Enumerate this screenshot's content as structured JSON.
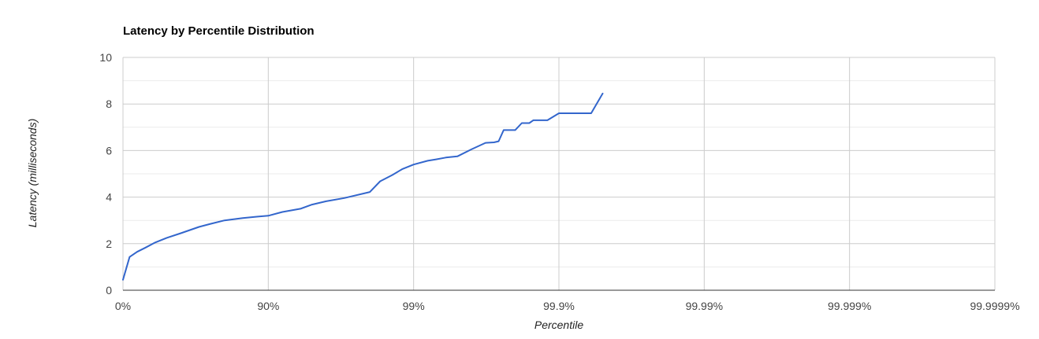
{
  "chart_data": {
    "type": "line",
    "title": "Latency by Percentile Distribution",
    "xlabel": "Percentile",
    "ylabel": "Latency (milliseconds)",
    "x_scale": "log-inverse-percentile",
    "x_ticks": [
      "0%",
      "90%",
      "99%",
      "99.9%",
      "99.99%",
      "99.999%",
      "99.9999%"
    ],
    "y_ticks": [
      "0",
      "2",
      "4",
      "6",
      "8",
      "10"
    ],
    "ylim": [
      0,
      10
    ],
    "xlim_percentile": [
      0,
      99.9999
    ],
    "grid": true,
    "legend": "none",
    "colors": {
      "line": "#3366cc",
      "grid_major": "#cccccc",
      "grid_minor": "#ebebeb",
      "axis": "#333333"
    },
    "series": [
      {
        "points": [
          {
            "x": 0,
            "y": 0.45
          },
          {
            "x": 10,
            "y": 1.43
          },
          {
            "x": 20,
            "y": 1.65
          },
          {
            "x": 30,
            "y": 1.83
          },
          {
            "x": 40,
            "y": 2.05
          },
          {
            "x": 50,
            "y": 2.25
          },
          {
            "x": 60,
            "y": 2.45
          },
          {
            "x": 70,
            "y": 2.72
          },
          {
            "x": 75,
            "y": 2.85
          },
          {
            "x": 80,
            "y": 3.0
          },
          {
            "x": 85,
            "y": 3.1
          },
          {
            "x": 88,
            "y": 3.16
          },
          {
            "x": 90,
            "y": 3.2
          },
          {
            "x": 92,
            "y": 3.36
          },
          {
            "x": 94,
            "y": 3.5
          },
          {
            "x": 95,
            "y": 3.68
          },
          {
            "x": 96,
            "y": 3.82
          },
          {
            "x": 97,
            "y": 3.96
          },
          {
            "x": 98,
            "y": 4.22
          },
          {
            "x": 98.3,
            "y": 4.68
          },
          {
            "x": 98.6,
            "y": 4.95
          },
          {
            "x": 98.8,
            "y": 5.2
          },
          {
            "x": 99.0,
            "y": 5.4
          },
          {
            "x": 99.2,
            "y": 5.56
          },
          {
            "x": 99.3,
            "y": 5.62
          },
          {
            "x": 99.4,
            "y": 5.7
          },
          {
            "x": 99.5,
            "y": 5.75
          },
          {
            "x": 99.6,
            "y": 6.05
          },
          {
            "x": 99.68,
            "y": 6.33
          },
          {
            "x": 99.72,
            "y": 6.35
          },
          {
            "x": 99.74,
            "y": 6.4
          },
          {
            "x": 99.76,
            "y": 6.88
          },
          {
            "x": 99.8,
            "y": 6.88
          },
          {
            "x": 99.82,
            "y": 7.18
          },
          {
            "x": 99.84,
            "y": 7.18
          },
          {
            "x": 99.85,
            "y": 7.3
          },
          {
            "x": 99.88,
            "y": 7.3
          },
          {
            "x": 99.9,
            "y": 7.6
          },
          {
            "x": 99.94,
            "y": 7.6
          },
          {
            "x": 99.95,
            "y": 8.45
          }
        ]
      }
    ]
  }
}
